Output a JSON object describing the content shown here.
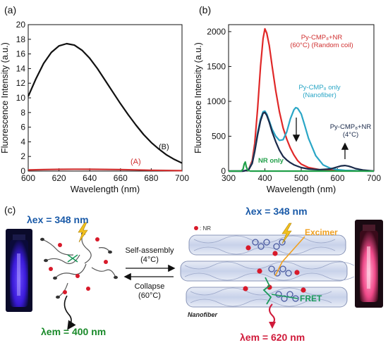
{
  "panel_labels": {
    "a": "(a)",
    "b": "(b)",
    "c": "(c)"
  },
  "chart_data": [
    {
      "type": "line",
      "xlabel": "Wavelength (nm)",
      "ylabel": "Fluorescence Intensity (a.u.)",
      "xlim": [
        600,
        700
      ],
      "ylim": [
        0,
        20
      ],
      "xticks": [
        "600",
        "620",
        "640",
        "660",
        "680",
        "700"
      ],
      "yticks": [
        "0",
        "2",
        "4",
        "6",
        "8",
        "10",
        "12",
        "14",
        "16",
        "18",
        "20"
      ],
      "series": [
        {
          "name": "(B)",
          "color": "#111111",
          "x": [
            600,
            605,
            610,
            615,
            620,
            625,
            630,
            635,
            640,
            645,
            650,
            655,
            660,
            665,
            670,
            675,
            680,
            685,
            690,
            695,
            700
          ],
          "y": [
            10.2,
            12.6,
            14.7,
            16.2,
            17.1,
            17.4,
            17.2,
            16.5,
            15.4,
            14.0,
            12.4,
            10.8,
            9.2,
            7.7,
            6.3,
            5.0,
            3.9,
            3.0,
            2.2,
            1.6,
            1.1
          ]
        },
        {
          "name": "(A)",
          "color": "#d03030",
          "x": [
            600,
            610,
            620,
            630,
            640,
            650,
            660,
            670,
            680,
            690,
            700
          ],
          "y": [
            0.15,
            0.2,
            0.24,
            0.26,
            0.25,
            0.23,
            0.2,
            0.16,
            0.12,
            0.09,
            0.06
          ]
        }
      ]
    },
    {
      "type": "line",
      "xlabel": "Wavelength (nm)",
      "ylabel": "Fluorescence Intensity (a.u.)",
      "xlim": [
        300,
        700
      ],
      "ylim": [
        0,
        2100
      ],
      "xticks": [
        "300",
        "400",
        "500",
        "600",
        "700"
      ],
      "yticks": [
        "0",
        "500",
        "1000",
        "1500",
        "2000"
      ],
      "annotations": [
        {
          "lines": [
            "Py-CMP₈+NR",
            "(60°C) (Random coil)"
          ],
          "color": "#d03030"
        },
        {
          "lines": [
            "Py-CMP₈ only",
            "(Nanofiber)"
          ],
          "color": "#2aa6c6"
        },
        {
          "lines": [
            "Py-CMP₈+NR",
            "(4°C)"
          ],
          "color": "#1a2a4a"
        },
        {
          "lines": [
            "NR only"
          ],
          "color": "#22a04a"
        }
      ],
      "series": [
        {
          "name": "Py-CMP₈+NR (60°C) (Random coil)",
          "color": "#e02828",
          "x": [
            300,
            340,
            355,
            365,
            372,
            380,
            388,
            395,
            400,
            405,
            412,
            420,
            430,
            440,
            450,
            460,
            470,
            480,
            490,
            500,
            520,
            550,
            600,
            650,
            700
          ],
          "y": [
            0,
            0,
            20,
            150,
            400,
            900,
            1500,
            1900,
            2040,
            1980,
            1800,
            1500,
            1150,
            850,
            620,
            460,
            330,
            230,
            150,
            100,
            50,
            20,
            10,
            5,
            0
          ]
        },
        {
          "name": "Py-CMP₈ only (Nanofiber)",
          "color": "#2aa6c6",
          "x": [
            300,
            340,
            355,
            365,
            372,
            380,
            388,
            395,
            400,
            405,
            412,
            420,
            430,
            440,
            450,
            460,
            470,
            480,
            485,
            490,
            500,
            510,
            520,
            540,
            560,
            580,
            600,
            620,
            650,
            680,
            700
          ],
          "y": [
            0,
            0,
            20,
            120,
            300,
            550,
            750,
            850,
            860,
            820,
            720,
            600,
            500,
            440,
            450,
            560,
            750,
            880,
            910,
            900,
            820,
            650,
            470,
            220,
            90,
            40,
            20,
            10,
            5,
            0,
            0
          ]
        },
        {
          "name": "Py-CMP₈+NR (4°C)",
          "color": "#1a2a4a",
          "x": [
            300,
            340,
            355,
            365,
            372,
            380,
            388,
            395,
            400,
            405,
            412,
            420,
            430,
            440,
            450,
            460,
            470,
            480,
            490,
            500,
            520,
            550,
            580,
            600,
            610,
            620,
            630,
            640,
            650,
            670,
            690,
            700
          ],
          "y": [
            0,
            0,
            15,
            110,
            280,
            520,
            720,
            830,
            840,
            800,
            700,
            560,
            420,
            300,
            210,
            160,
            120,
            90,
            70,
            50,
            30,
            20,
            30,
            60,
            75,
            80,
            72,
            55,
            35,
            15,
            5,
            0
          ]
        },
        {
          "name": "NR only",
          "color": "#22a04a",
          "x": [
            300,
            335,
            340,
            343,
            346,
            349,
            353,
            360,
            400,
            500,
            600,
            700
          ],
          "y": [
            0,
            0,
            30,
            100,
            130,
            60,
            10,
            0,
            0,
            0,
            0,
            0
          ]
        }
      ]
    }
  ],
  "scheme": {
    "lambda_ex_left": "λex = 348 nm",
    "lambda_em_left": "λem = 400 nm",
    "lambda_ex_right": "λex = 348 nm",
    "lambda_em_right": "λem = 620 nm",
    "arrow_top_label_1": "Self-assembly",
    "arrow_top_label_2": "(4°C)",
    "arrow_bottom_label_1": "Collapse",
    "arrow_bottom_label_2": "(60°C)",
    "nr_legend": ": NR",
    "nanofiber_label": "Nanofiber",
    "excimer_label": "Excimer",
    "fret_label": "FRET",
    "colors": {
      "ex_blue": "#1a5aa8",
      "em_green": "#1a8a2a",
      "em_red": "#d01a3a",
      "excimer_orange": "#f0a020",
      "fret_green": "#1a9a5a",
      "nr_red": "#d81a2a",
      "vial_blue": "#3a1ad8",
      "vial_pink": "#f04a8a"
    }
  }
}
